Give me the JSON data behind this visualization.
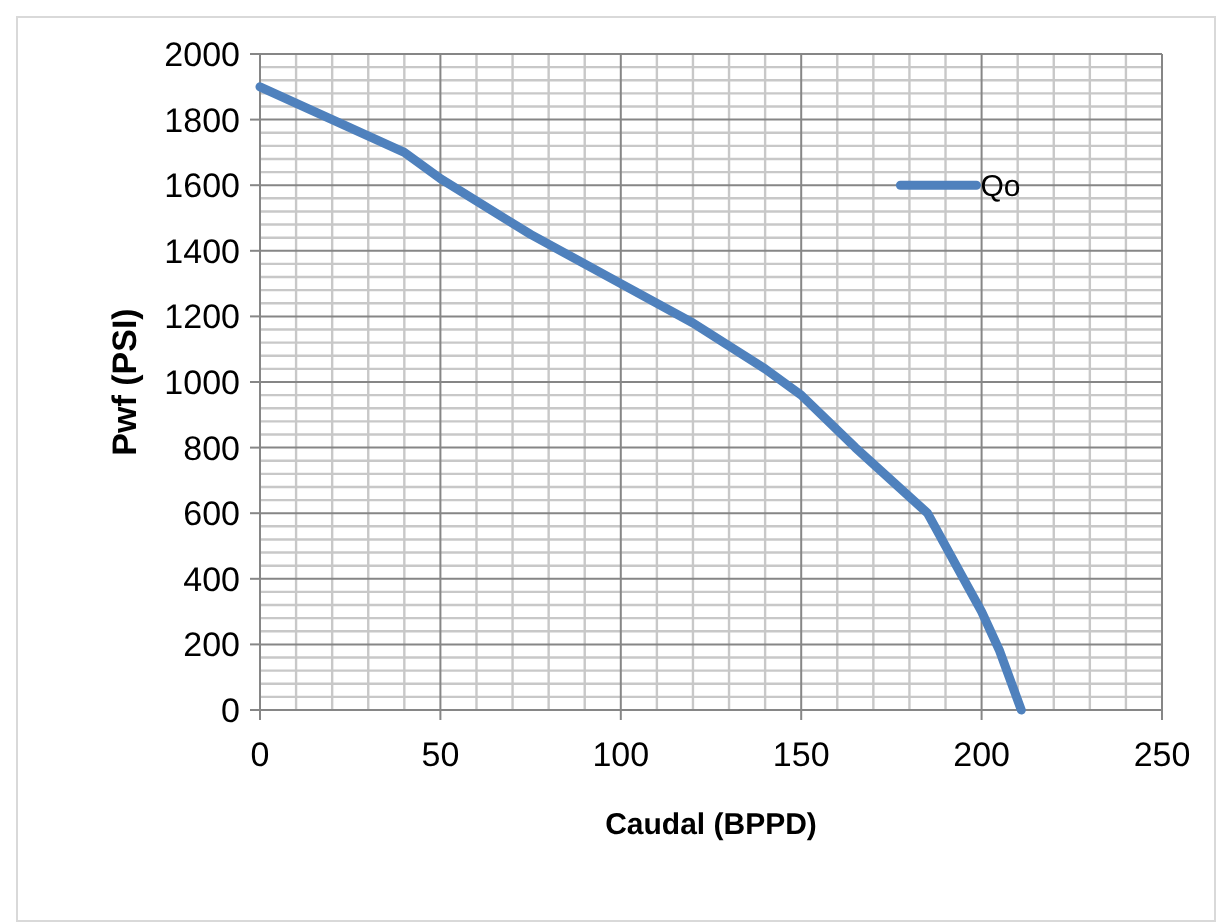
{
  "chart_data": {
    "type": "line",
    "xlabel": "Caudal (BPPD)",
    "ylabel": "Pwf (PSI)",
    "x": [
      0,
      20,
      40,
      50,
      75,
      100,
      120,
      140,
      150,
      165,
      185,
      195,
      200,
      205,
      211
    ],
    "series": [
      {
        "name": "Qo",
        "color": "#4f81bd",
        "values": [
          1900,
          1800,
          1700,
          1620,
          1450,
          1300,
          1180,
          1040,
          960,
          800,
          600,
          400,
          300,
          180,
          0
        ]
      }
    ],
    "xlim": [
      0,
      250
    ],
    "xticks": [
      0,
      50,
      100,
      150,
      200,
      250
    ],
    "ylim": [
      0,
      2000
    ],
    "yticks": [
      0,
      200,
      400,
      600,
      800,
      1000,
      1200,
      1400,
      1600,
      1800,
      2000
    ],
    "grid": true,
    "legend": "top right",
    "marker": "none",
    "line_style": "solid"
  }
}
